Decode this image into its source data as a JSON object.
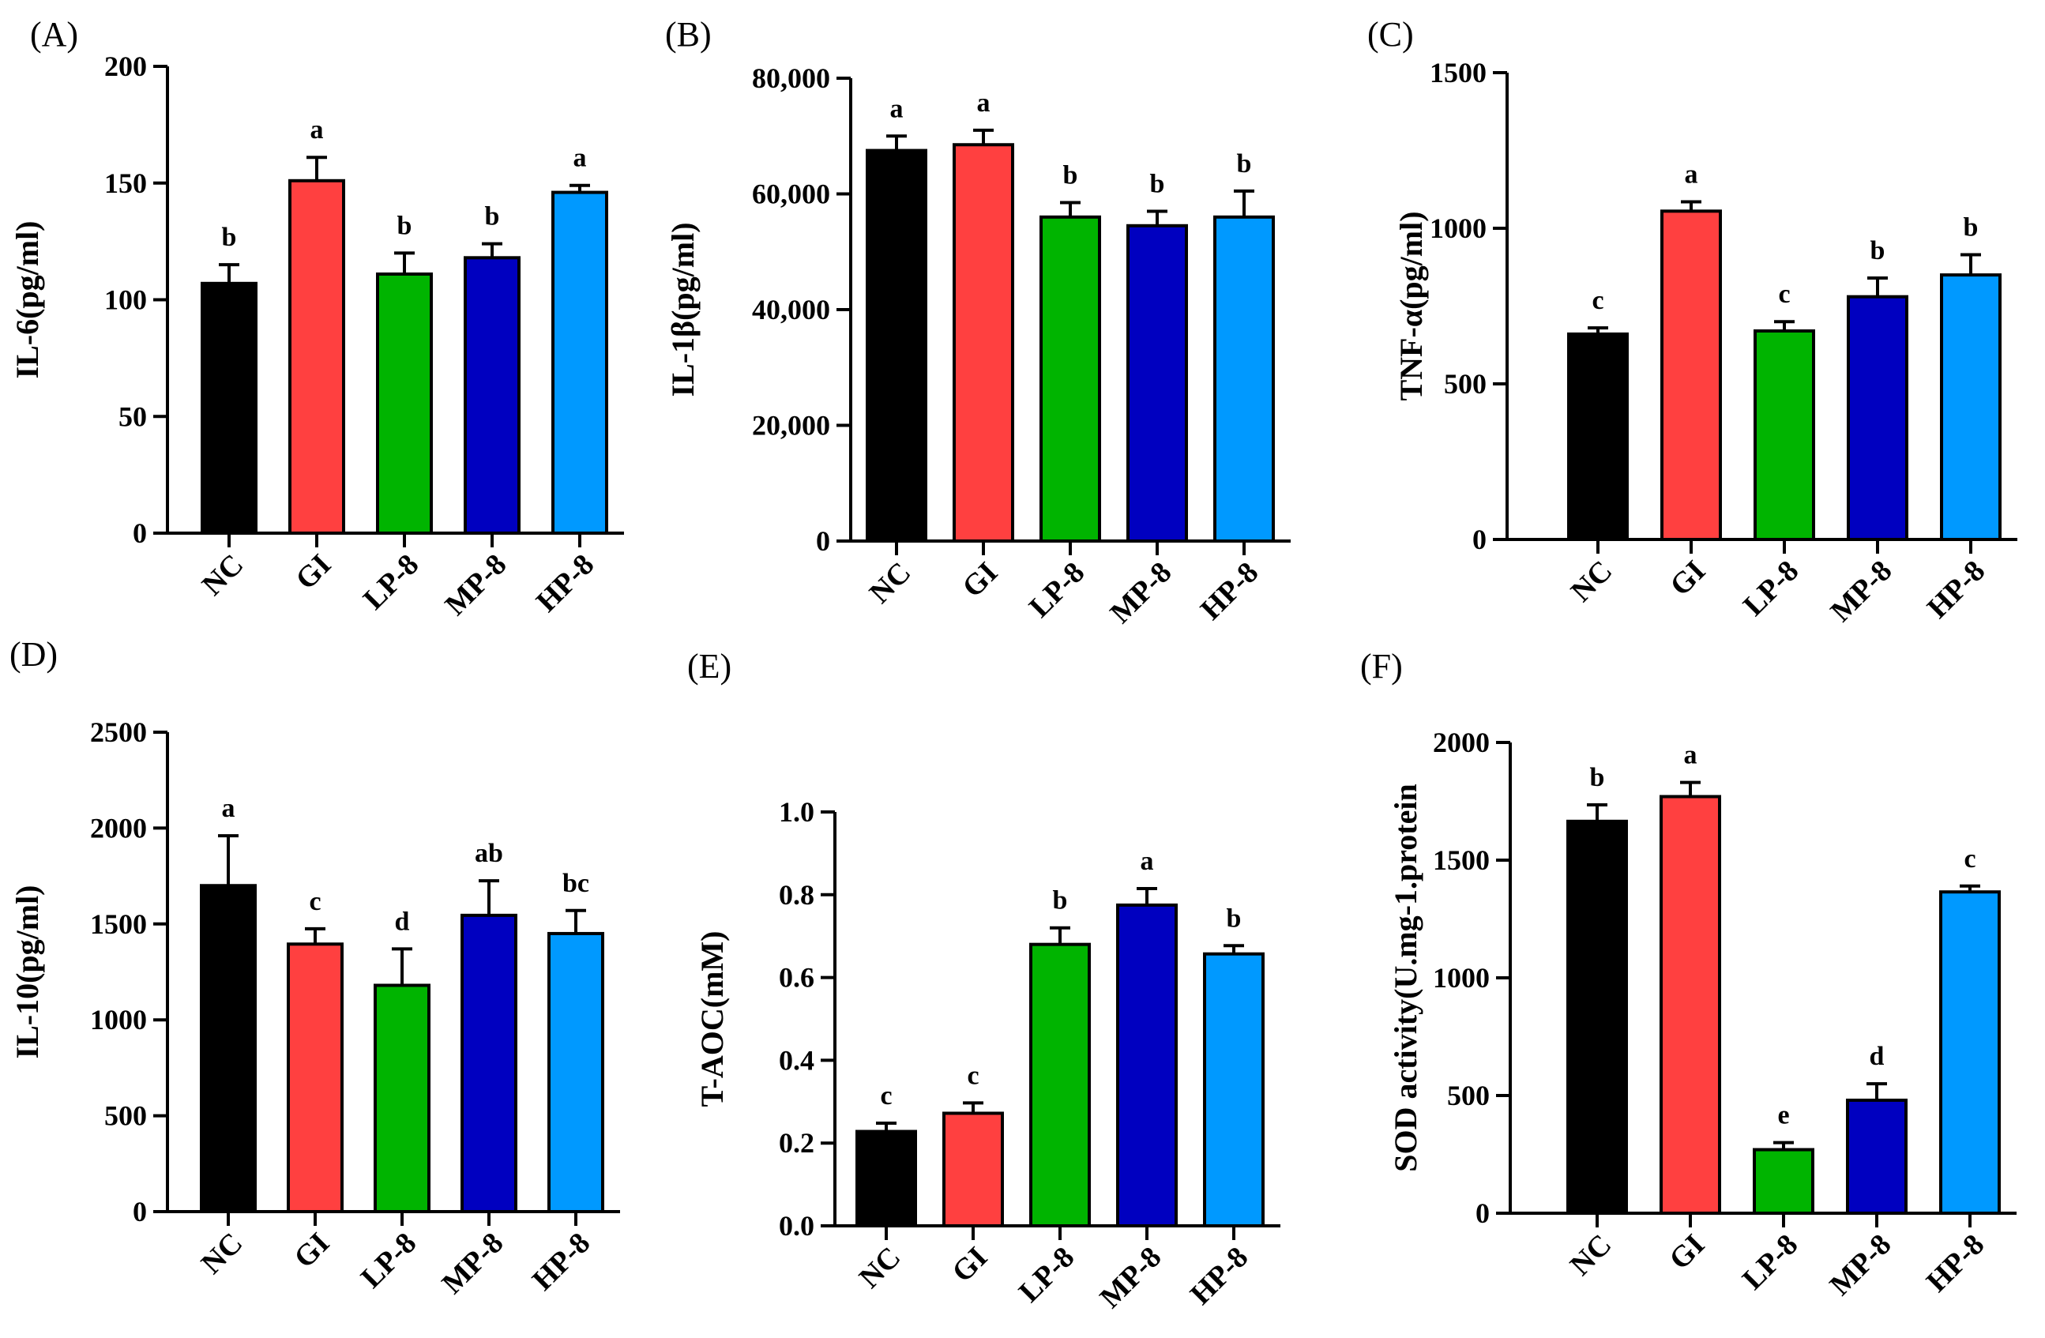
{
  "colors": {
    "NC": "#000000",
    "GI": "#ff4040",
    "LP-8": "#00b400",
    "MP-8": "#0000c0",
    "HP-8": "#0099ff"
  },
  "chart_data": [
    {
      "type": "bar",
      "panel": "(A)",
      "categories": [
        "NC",
        "GI",
        "LP-8",
        "MP-8",
        "HP-8"
      ],
      "values": [
        107,
        151,
        111,
        118,
        146
      ],
      "errors": [
        8,
        10,
        9,
        6,
        3
      ],
      "significance": [
        "b",
        "a",
        "b",
        "b",
        "a"
      ],
      "ylabel": "IL-6(pg/ml)",
      "ylim": [
        0,
        200
      ],
      "yticks": [
        "0",
        "50",
        "100",
        "150",
        "200"
      ]
    },
    {
      "type": "bar",
      "panel": "(B)",
      "categories": [
        "NC",
        "GI",
        "LP-8",
        "MP-8",
        "HP-8"
      ],
      "values": [
        67500,
        68500,
        56000,
        54500,
        56000
      ],
      "errors": [
        2500,
        2500,
        2500,
        2500,
        4500
      ],
      "significance": [
        "a",
        "a",
        "b",
        "b",
        "b"
      ],
      "ylabel": "IL-1β(pg/ml)",
      "ylim": [
        0,
        80000
      ],
      "yticks": [
        "0",
        "20,000",
        "40,000",
        "60,000",
        "80,000"
      ]
    },
    {
      "type": "bar",
      "panel": "(C)",
      "categories": [
        "NC",
        "GI",
        "LP-8",
        "MP-8",
        "HP-8"
      ],
      "values": [
        660,
        1055,
        670,
        780,
        850
      ],
      "errors": [
        20,
        30,
        30,
        60,
        65
      ],
      "significance": [
        "c",
        "a",
        "c",
        "b",
        "b"
      ],
      "ylabel": "TNF-α(pg/ml)",
      "ylim": [
        0,
        1500
      ],
      "yticks": [
        "0",
        "500",
        "1000",
        "1500"
      ]
    },
    {
      "type": "bar",
      "panel": "(D)",
      "categories": [
        "NC",
        "GI",
        "LP-8",
        "MP-8",
        "HP-8"
      ],
      "values": [
        1700,
        1395,
        1180,
        1545,
        1450
      ],
      "errors": [
        260,
        80,
        190,
        180,
        120
      ],
      "significance": [
        "a",
        "c",
        "d",
        "ab",
        "bc"
      ],
      "ylabel": "IL-10(pg/ml)",
      "ylim": [
        0,
        2500
      ],
      "yticks": [
        "0",
        "500",
        "1000",
        "1500",
        "2000",
        "2500"
      ]
    },
    {
      "type": "bar",
      "panel": "(E)",
      "categories": [
        "NC",
        "GI",
        "LP-8",
        "MP-8",
        "HP-8"
      ],
      "values": [
        0.228,
        0.272,
        0.68,
        0.775,
        0.657
      ],
      "errors": [
        0.02,
        0.025,
        0.04,
        0.04,
        0.02
      ],
      "significance": [
        "c",
        "c",
        "b",
        "a",
        "b"
      ],
      "ylabel": "T-AOC(mM)",
      "ylim": [
        0,
        1.0
      ],
      "yticks": [
        "0.0",
        "0.2",
        "0.4",
        "0.6",
        "0.8",
        "1.0"
      ]
    },
    {
      "type": "bar",
      "panel": "(F)",
      "categories": [
        "NC",
        "GI",
        "LP-8",
        "MP-8",
        "HP-8"
      ],
      "values": [
        1665,
        1770,
        270,
        480,
        1365
      ],
      "errors": [
        70,
        60,
        30,
        70,
        25
      ],
      "significance": [
        "b",
        "a",
        "e",
        "d",
        "c"
      ],
      "ylabel": "SOD activity(U.mg-1.protein",
      "ylim": [
        0,
        2000
      ],
      "yticks": [
        "0",
        "500",
        "1000",
        "1500",
        "2000"
      ]
    }
  ]
}
